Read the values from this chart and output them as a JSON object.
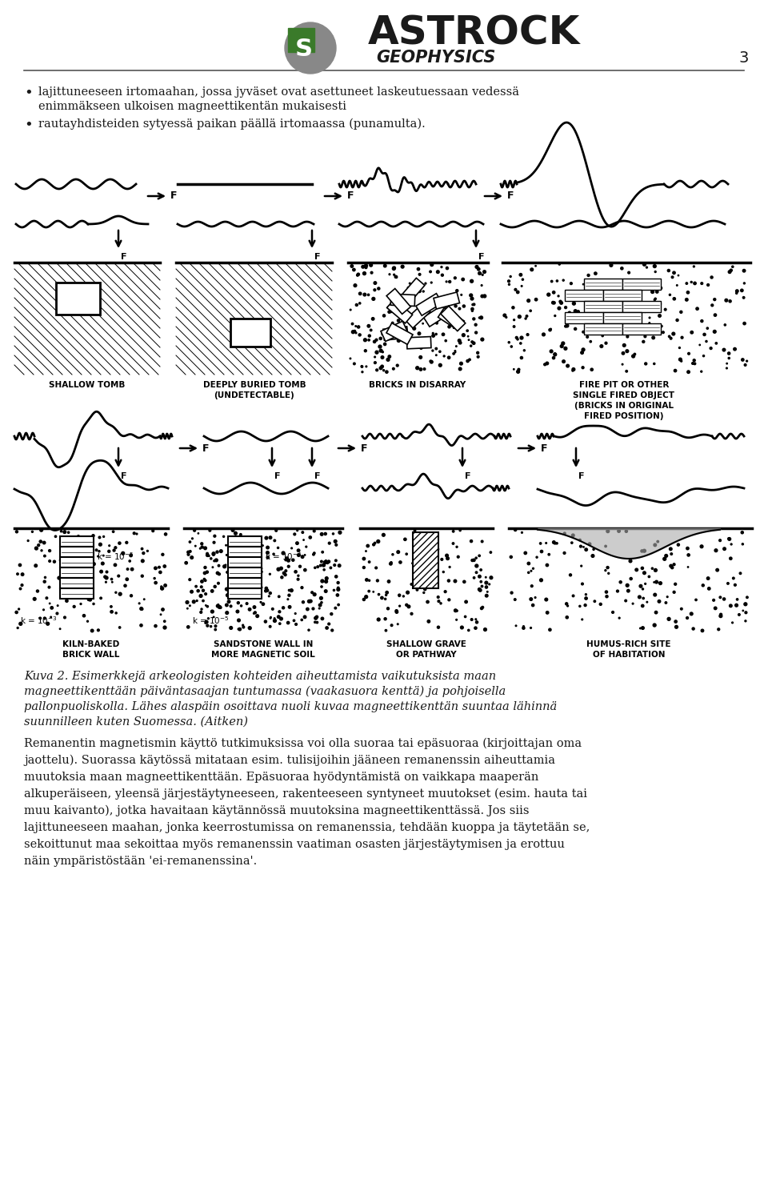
{
  "page_number": "3",
  "bg": "#ffffff",
  "text_color": "#1a1a1a",
  "bullet1_line1": "lajittuneeseen irtomaahan, jossa jyväset ovat asettuneet laskeutuessaan vedessä",
  "bullet1_line2": "enimmäkseen ulkoisen magneettikentän mukaisesti",
  "bullet2": "rautayhdisteiden sytyessä paikan päällä irtomaassa (punamulta).",
  "label_shallow": "SHALLOW TOMB",
  "label_deep": "DEEPLY BURIED TOMB",
  "label_deep2": "(UNDETECTABLE)",
  "label_bricks": "BRICKS IN DISARRAY",
  "label_fire1": "FIRE PIT OR OTHER",
  "label_fire2": "SINGLE FIRED OBJECT",
  "label_fire3": "(BRICKS IN ORIGINAL",
  "label_fire4": "FIRED POSITION)",
  "label_kiln1": "KILN-BAKED",
  "label_kiln2": "BRICK WALL",
  "label_sand1": "SANDSTONE WALL IN",
  "label_sand2": "MORE MAGNETIC SOIL",
  "label_grave1": "SHALLOW GRAVE",
  "label_grave2": "OR PATHWAY",
  "label_humus1": "HUMUS-RICH SITE",
  "label_humus2": "OF HABITATION",
  "caption_lines": [
    "Kuva 2. Esimerkkejä arkeologisten kohteiden aiheuttamista vaikutuksista maan",
    "magneettikenttään päiväntasaajan tuntumassa (vaakasuora kenttä) ja pohjoisella",
    "pallonpuoliskolla. Lähes alaspäin osoittava nuoli kuvaa magneettikenttän suuntaa lähinnä",
    "suunnilleen kuten Suomessa. (Aitken)"
  ],
  "body_lines": [
    "Remanentin magnetismin käyttö tutkimuksissa voi olla suoraa tai epäsuoraa (kirjoittajan oma",
    "jaottelu). Suorassa käytössä mitataan esim. tulisijoihin jääneen remanenssin aiheuttamia",
    "muutoksia maan magneettikenttään. Epäsuoraa hyödyntämistä on vaikkapa maaperän",
    "alkuperäiseen, yleensä järjestäytyneeseen, rakenteeseen syntyneet muutokset (esim. hauta tai",
    "muu kaivanto), jotka havaitaan käytännössä muutoksina magneettikenttässä. Jos siis",
    "lajittuneeseen maahan, jonka keerrostumissa on remanenssia, tehdään kuoppa ja täytetään se,",
    "sekoittunut maa sekoittaa myös remanenssin vaatiman osasten järjestäytymisen ja erottuu",
    "näin ympäristöstään 'ei-remanenssina'."
  ]
}
